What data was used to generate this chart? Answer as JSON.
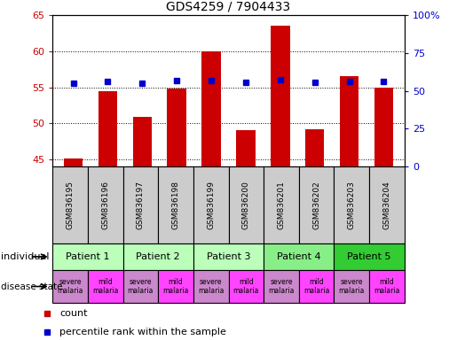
{
  "title": "GDS4259 / 7904433",
  "samples": [
    "GSM836195",
    "GSM836196",
    "GSM836197",
    "GSM836198",
    "GSM836199",
    "GSM836200",
    "GSM836201",
    "GSM836202",
    "GSM836203",
    "GSM836204"
  ],
  "counts": [
    45.1,
    54.5,
    50.9,
    54.8,
    60.0,
    49.1,
    63.5,
    49.2,
    56.5,
    55.0
  ],
  "percentiles": [
    55.0,
    56.5,
    55.3,
    56.8,
    56.7,
    55.5,
    57.5,
    55.7,
    56.5,
    56.5
  ],
  "ylim_left": [
    44,
    65
  ],
  "ylim_right": [
    0,
    100
  ],
  "yticks_left": [
    45,
    50,
    55,
    60,
    65
  ],
  "yticks_right": [
    0,
    25,
    50,
    75,
    100
  ],
  "patients": [
    {
      "label": "Patient 1",
      "cols": [
        0,
        1
      ],
      "color": "#bbffbb"
    },
    {
      "label": "Patient 2",
      "cols": [
        2,
        3
      ],
      "color": "#bbffbb"
    },
    {
      "label": "Patient 3",
      "cols": [
        4,
        5
      ],
      "color": "#bbffbb"
    },
    {
      "label": "Patient 4",
      "cols": [
        6,
        7
      ],
      "color": "#88ee88"
    },
    {
      "label": "Patient 5",
      "cols": [
        8,
        9
      ],
      "color": "#33cc33"
    }
  ],
  "disease_states": [
    {
      "label": "severe\nmalaria",
      "col": 0,
      "color": "#cc88cc"
    },
    {
      "label": "mild\nmalaria",
      "col": 1,
      "color": "#ff44ff"
    },
    {
      "label": "severe\nmalaria",
      "col": 2,
      "color": "#cc88cc"
    },
    {
      "label": "mild\nmalaria",
      "col": 3,
      "color": "#ff44ff"
    },
    {
      "label": "severe\nmalaria",
      "col": 4,
      "color": "#cc88cc"
    },
    {
      "label": "mild\nmalaria",
      "col": 5,
      "color": "#ff44ff"
    },
    {
      "label": "severe\nmalaria",
      "col": 6,
      "color": "#cc88cc"
    },
    {
      "label": "mild\nmalaria",
      "col": 7,
      "color": "#ff44ff"
    },
    {
      "label": "severe\nmalaria",
      "col": 8,
      "color": "#cc88cc"
    },
    {
      "label": "mild\nmalaria",
      "col": 9,
      "color": "#ff44ff"
    }
  ],
  "bar_color": "#cc0000",
  "dot_color": "#0000cc",
  "grid_color": "#000000",
  "label_color_left": "#cc0000",
  "label_color_right": "#0000cc",
  "sample_bg_color": "#cccccc",
  "bar_width": 0.55,
  "fig_width": 5.15,
  "fig_height": 3.84,
  "dpi": 100
}
